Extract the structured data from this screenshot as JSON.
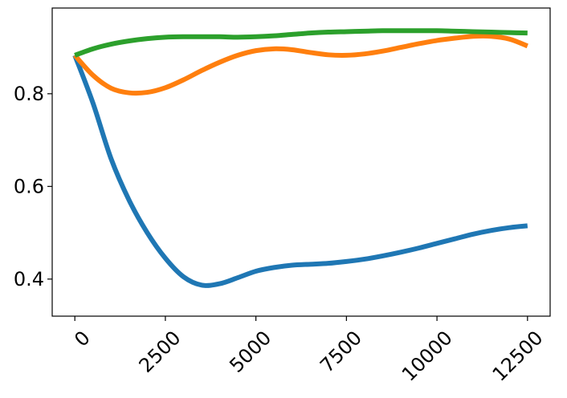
{
  "chart_data": {
    "type": "line",
    "title": "",
    "xlabel": "",
    "ylabel": "",
    "xlim": [
      -625,
      13125
    ],
    "ylim": [
      0.32,
      0.985
    ],
    "grid": false,
    "legend": "none",
    "x_ticks": [
      {
        "value": 0,
        "label": "0"
      },
      {
        "value": 2500,
        "label": "2500"
      },
      {
        "value": 5000,
        "label": "5000"
      },
      {
        "value": 7500,
        "label": "7500"
      },
      {
        "value": 10000,
        "label": "10000"
      },
      {
        "value": 12500,
        "label": "12500"
      }
    ],
    "y_ticks": [
      {
        "value": 0.4,
        "label": "0.4"
      },
      {
        "value": 0.6,
        "label": "0.6"
      },
      {
        "value": 0.8,
        "label": "0.8"
      }
    ],
    "series": [
      {
        "color": "#1f77b4",
        "points": [
          [
            0,
            0.883
          ],
          [
            500,
            0.78
          ],
          [
            1000,
            0.66
          ],
          [
            1500,
            0.57
          ],
          [
            2000,
            0.5
          ],
          [
            2500,
            0.445
          ],
          [
            3000,
            0.405
          ],
          [
            3500,
            0.387
          ],
          [
            4000,
            0.39
          ],
          [
            4500,
            0.403
          ],
          [
            5000,
            0.417
          ],
          [
            5500,
            0.425
          ],
          [
            6000,
            0.43
          ],
          [
            6500,
            0.432
          ],
          [
            7000,
            0.434
          ],
          [
            7500,
            0.438
          ],
          [
            8000,
            0.443
          ],
          [
            8500,
            0.45
          ],
          [
            9000,
            0.458
          ],
          [
            9500,
            0.467
          ],
          [
            10000,
            0.477
          ],
          [
            10500,
            0.487
          ],
          [
            11000,
            0.497
          ],
          [
            11500,
            0.505
          ],
          [
            12000,
            0.511
          ],
          [
            12500,
            0.515
          ]
        ]
      },
      {
        "color": "#ff7f0e",
        "points": [
          [
            0,
            0.883
          ],
          [
            500,
            0.84
          ],
          [
            1000,
            0.812
          ],
          [
            1500,
            0.802
          ],
          [
            2000,
            0.803
          ],
          [
            2500,
            0.813
          ],
          [
            3000,
            0.83
          ],
          [
            3500,
            0.85
          ],
          [
            4000,
            0.868
          ],
          [
            4500,
            0.883
          ],
          [
            5000,
            0.893
          ],
          [
            5500,
            0.897
          ],
          [
            6000,
            0.895
          ],
          [
            6500,
            0.889
          ],
          [
            7000,
            0.884
          ],
          [
            7500,
            0.883
          ],
          [
            8000,
            0.886
          ],
          [
            8500,
            0.892
          ],
          [
            9000,
            0.9
          ],
          [
            9500,
            0.908
          ],
          [
            10000,
            0.915
          ],
          [
            10500,
            0.92
          ],
          [
            11000,
            0.924
          ],
          [
            11500,
            0.924
          ],
          [
            12000,
            0.918
          ],
          [
            12500,
            0.903
          ]
        ]
      },
      {
        "color": "#2ca02c",
        "points": [
          [
            0,
            0.883
          ],
          [
            500,
            0.897
          ],
          [
            1000,
            0.907
          ],
          [
            1500,
            0.914
          ],
          [
            2000,
            0.919
          ],
          [
            2500,
            0.922
          ],
          [
            3000,
            0.923
          ],
          [
            3500,
            0.923
          ],
          [
            4000,
            0.923
          ],
          [
            4500,
            0.922
          ],
          [
            5000,
            0.923
          ],
          [
            5500,
            0.925
          ],
          [
            6000,
            0.928
          ],
          [
            6500,
            0.931
          ],
          [
            7000,
            0.933
          ],
          [
            7500,
            0.934
          ],
          [
            8000,
            0.935
          ],
          [
            8500,
            0.936
          ],
          [
            9000,
            0.936
          ],
          [
            9500,
            0.936
          ],
          [
            10000,
            0.936
          ],
          [
            10500,
            0.935
          ],
          [
            11000,
            0.934
          ],
          [
            11500,
            0.933
          ],
          [
            12000,
            0.932
          ],
          [
            12500,
            0.931
          ]
        ]
      }
    ]
  }
}
